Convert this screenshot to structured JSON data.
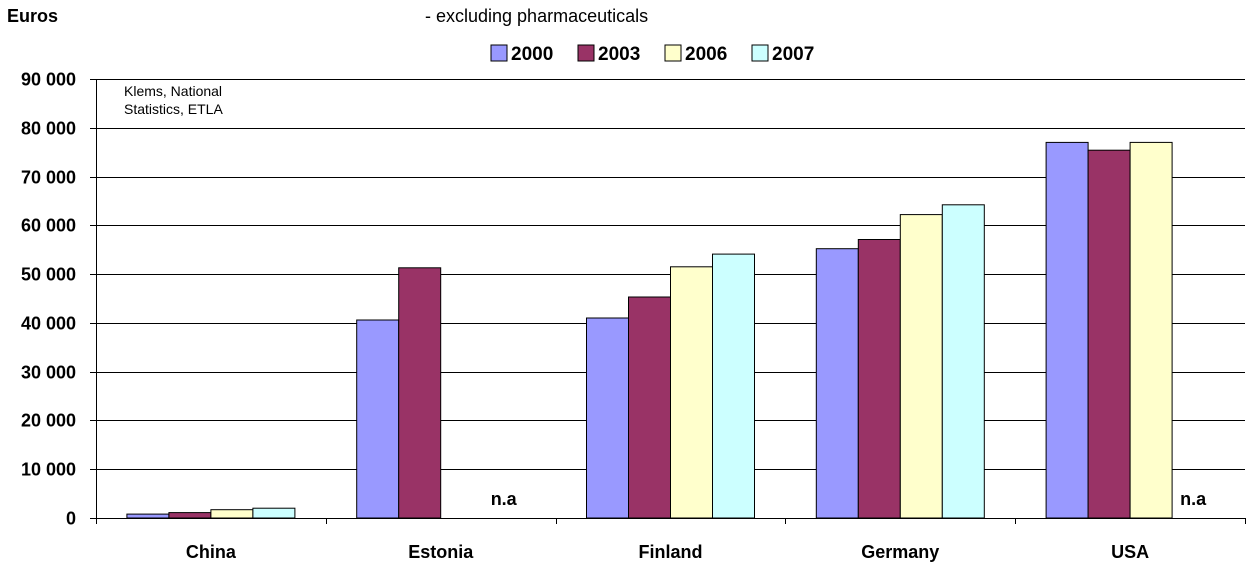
{
  "chart_data": {
    "type": "bar",
    "ylabel": "Euros",
    "subtitle": "- excluding pharmaceuticals",
    "source_note": [
      "Klems, National",
      "Statistics, ETLA"
    ],
    "ylim": [
      0,
      90000
    ],
    "y_ticks": [
      0,
      10000,
      20000,
      30000,
      40000,
      50000,
      60000,
      70000,
      80000,
      90000
    ],
    "y_tick_labels": [
      "0",
      "10 000",
      "20 000",
      "30 000",
      "40 000",
      "50 000",
      "60 000",
      "70 000",
      "80 000",
      "90 000"
    ],
    "grid": true,
    "legend_position": "top-center",
    "categories": [
      "China",
      "Estonia",
      "Finland",
      "Germany",
      "USA"
    ],
    "series": [
      {
        "name": "2000",
        "color": "#9999FF",
        "values": [
          800,
          40600,
          41000,
          55200,
          77000
        ]
      },
      {
        "name": "2003",
        "color": "#993366",
        "values": [
          1100,
          51300,
          45300,
          57100,
          75400
        ]
      },
      {
        "name": "2006",
        "color": "#FFFFCC",
        "values": [
          1700,
          null,
          51500,
          62200,
          77000
        ]
      },
      {
        "name": "2007",
        "color": "#CCFFFF",
        "values": [
          2000,
          null,
          54100,
          64200,
          null
        ]
      }
    ],
    "annotations": [
      {
        "category": "Estonia",
        "text": "n.a"
      },
      {
        "category": "USA",
        "text": "n.a"
      }
    ]
  }
}
